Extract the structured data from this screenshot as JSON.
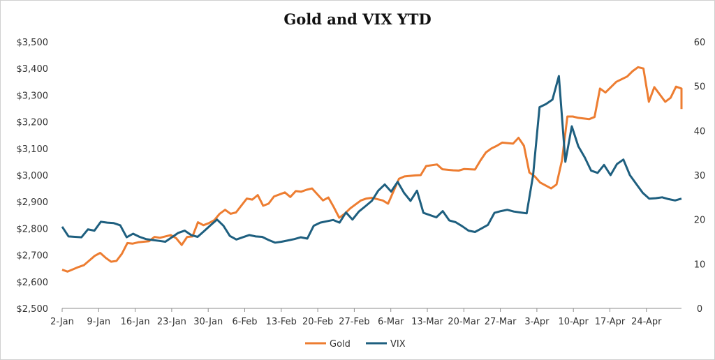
{
  "chart_data": {
    "type": "line",
    "title": "Gold and VIX YTD",
    "xlabel": "",
    "ylabel": "",
    "y2label": "",
    "grid": false,
    "legend_position": "bottom",
    "x_tick_labels": [
      "2-Jan",
      "9-Jan",
      "16-Jan",
      "23-Jan",
      "30-Jan",
      "6-Feb",
      "13-Feb",
      "20-Feb",
      "27-Feb",
      "6-Mar",
      "13-Mar",
      "20-Mar",
      "27-Mar",
      "3-Apr",
      "10-Apr",
      "17-Apr",
      "24-Apr"
    ],
    "y_left": {
      "min": 2500,
      "max": 3500,
      "step": 100,
      "tick_labels": [
        "$2,500",
        "$2,600",
        "$2,700",
        "$2,800",
        "$2,900",
        "$3,000",
        "$3,100",
        "$3,200",
        "$3,300",
        "$3,400",
        "$3,500"
      ]
    },
    "y_right": {
      "min": 0,
      "max": 60,
      "step": 10,
      "tick_labels": [
        "0",
        "10",
        "20",
        "30",
        "40",
        "50",
        "60"
      ]
    },
    "series": [
      {
        "name": "Gold",
        "color": "#ED7D31",
        "axis": "left",
        "x": [
          0,
          1,
          3,
          4,
          6,
          7,
          8,
          9,
          10,
          11,
          12,
          13,
          14,
          15,
          16,
          17,
          18,
          20,
          21,
          22,
          23,
          24,
          25,
          26,
          27,
          28,
          29,
          30,
          31,
          32,
          34,
          35,
          36,
          37,
          38,
          39,
          41,
          42,
          43,
          44,
          45,
          46,
          48,
          49,
          50,
          51,
          52,
          53,
          55,
          56,
          57,
          58,
          59,
          60,
          62,
          63,
          64,
          65,
          66,
          67,
          69,
          70,
          71,
          72,
          73,
          74,
          76,
          77,
          78,
          79,
          80,
          81,
          83,
          84,
          85,
          86,
          87,
          88,
          90,
          91,
          92,
          93,
          94,
          95,
          97,
          98,
          99,
          100,
          101,
          102,
          104,
          105,
          106,
          107,
          108,
          109,
          111,
          112,
          113,
          114
        ],
        "y": [
          2645,
          2638,
          2655,
          2662,
          2697,
          2708,
          2690,
          2675,
          2678,
          2705,
          2745,
          2743,
          2748,
          2750,
          2752,
          2768,
          2765,
          2775,
          2763,
          2738,
          2768,
          2770,
          2823,
          2812,
          2820,
          2831,
          2855,
          2870,
          2855,
          2860,
          2912,
          2908,
          2925,
          2885,
          2893,
          2920,
          2935,
          2918,
          2940,
          2938,
          2945,
          2950,
          2905,
          2916,
          2880,
          2840,
          2855,
          2875,
          2905,
          2912,
          2915,
          2910,
          2905,
          2893,
          2986,
          2995,
          2997,
          2999,
          3000,
          3034,
          3040,
          3022,
          3020,
          3018,
          3017,
          3023,
          3021,
          3055,
          3085,
          3100,
          3110,
          3122,
          3118,
          3140,
          3110,
          3010,
          2995,
          2972,
          2950,
          2965,
          3055,
          3220,
          3220,
          3215,
          3210,
          3218,
          3325,
          3310,
          3330,
          3350,
          3370,
          3390,
          3405,
          3400,
          3275,
          3330,
          3275,
          3290,
          3332,
          3325
        ],
        "y_end": 3248
      },
      {
        "name": "VIX",
        "color": "#1E5F7F",
        "axis": "right",
        "y": [
          18.4,
          16.2,
          16.1,
          16.0,
          17.8,
          17.5,
          19.5,
          19.3,
          19.2,
          18.7,
          16.0,
          16.8,
          16.1,
          15.6,
          15.4,
          15.2,
          15.0,
          16.0,
          17.0,
          17.5,
          16.5,
          16.1,
          17.4,
          18.7,
          20.0,
          18.6,
          16.3,
          15.5,
          16.0,
          16.5,
          16.2,
          16.1,
          15.4,
          14.8,
          15.0,
          15.3,
          15.6,
          16.0,
          15.7,
          18.6,
          19.3,
          19.6,
          19.9,
          19.3,
          21.6,
          20.0,
          21.8,
          23.0,
          24.2,
          26.5,
          27.9,
          26.3,
          28.5,
          26.0,
          24.2,
          26.5,
          21.5,
          21.0,
          20.5,
          21.9,
          19.8,
          19.4,
          18.5,
          17.5,
          17.2,
          18.0,
          18.8,
          21.5,
          21.9,
          22.2,
          21.8,
          21.6,
          21.4,
          30.0,
          45.3,
          46.0,
          47.0,
          52.3,
          33.0,
          41.0,
          36.5,
          34.0,
          31.0,
          30.5,
          32.3,
          30.0,
          32.5,
          33.5,
          30.0,
          28.0,
          26.0,
          24.7,
          24.8,
          25.0,
          24.6,
          24.3,
          24.7
        ],
        "x_start": 0,
        "x_step": 1
      }
    ]
  }
}
